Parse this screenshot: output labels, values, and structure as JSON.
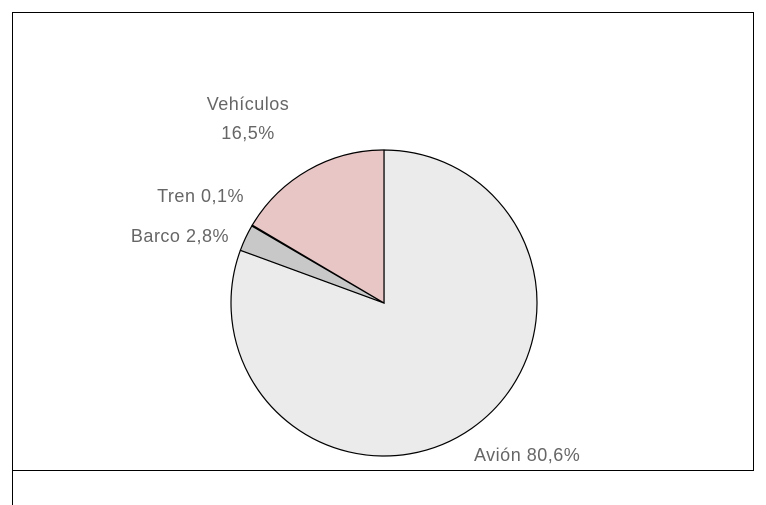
{
  "chart_data": {
    "type": "pie",
    "categories": [
      "Avión",
      "Barco",
      "Tren",
      "Vehículos"
    ],
    "values": [
      80.6,
      2.8,
      0.1,
      16.5
    ],
    "value_labels": [
      "80,6%",
      "2,8%",
      "0,1%",
      "16,5%"
    ],
    "colors": [
      "#ebebeb",
      "#c8c8c8",
      "#444444",
      "#e9c6c6"
    ]
  }
}
